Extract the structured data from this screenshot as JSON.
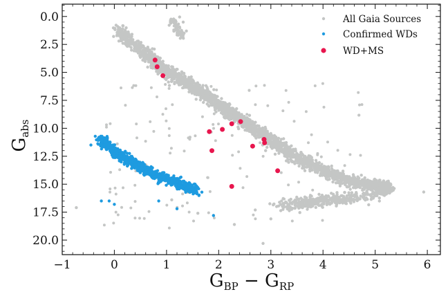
{
  "chart_data": {
    "type": "scatter",
    "title": "",
    "xlabel": {
      "main": "G",
      "sub1": "BP",
      "minus": " − ",
      "main2": "G",
      "sub2": "RP"
    },
    "ylabel": {
      "main": "G",
      "sub": "abs"
    },
    "xlim": [
      -1.0,
      6.25
    ],
    "ylim": [
      21.3,
      -1.1
    ],
    "y_inverted": true,
    "xticks": [
      -1,
      0,
      1,
      2,
      3,
      4,
      5,
      6
    ],
    "xtick_labels": [
      "−1",
      "0",
      "1",
      "2",
      "3",
      "4",
      "5",
      "6"
    ],
    "yticks": [
      0.0,
      2.5,
      5.0,
      7.5,
      10.0,
      12.5,
      15.0,
      17.5,
      20.0
    ],
    "ytick_labels": [
      "0.0",
      "2.5",
      "5.0",
      "7.5",
      "10.0",
      "12.5",
      "15.0",
      "17.5",
      "20.0"
    ],
    "grid": false,
    "legend_position": "top-right",
    "series": [
      {
        "name": "All Gaia Sources",
        "color": "#c4c6c5",
        "marker_size": "small",
        "distribution": {
          "main_sequence_track": [
            [
              0.05,
              1.2
            ],
            [
              0.6,
              3.3
            ],
            [
              1.0,
              4.9
            ],
            [
              1.5,
              6.3
            ],
            [
              2.0,
              7.9
            ],
            [
              2.5,
              9.5
            ],
            [
              3.0,
              11.1
            ],
            [
              3.5,
              12.6
            ],
            [
              4.0,
              13.8
            ],
            [
              4.5,
              14.7
            ],
            [
              5.0,
              15.2
            ],
            [
              5.25,
              15.5
            ]
          ],
          "giant_branch": [
            [
              1.1,
              0.2
            ],
            [
              1.2,
              1.0
            ],
            [
              1.3,
              1.8
            ]
          ],
          "white_dwarf_cloud": [
            [
              3.3,
              17.0
            ],
            [
              3.8,
              16.6
            ],
            [
              4.3,
              16.3
            ],
            [
              4.9,
              16.0
            ]
          ]
        },
        "points": [
          [
            -0.73,
            17.1
          ],
          [
            5.93,
            15.7
          ],
          [
            2.85,
            20.3
          ],
          [
            1.9,
            17.8
          ],
          [
            1.6,
            17.6
          ],
          [
            1.1,
            16.4
          ],
          [
            2.7,
            17.3
          ],
          [
            3.0,
            18.1
          ],
          [
            2.3,
            18.6
          ],
          [
            2.9,
            12.0
          ],
          [
            1.45,
            10.8
          ],
          [
            2.1,
            8.6
          ],
          [
            1.25,
            0.05
          ],
          [
            1.32,
            0.5
          ],
          [
            1.38,
            1.3
          ]
        ]
      },
      {
        "name": "Confirmed WDs",
        "color": "#1e9be0",
        "marker_size": "small",
        "distribution": {
          "track": [
            [
              -0.3,
              10.8
            ],
            [
              0.0,
              12.1
            ],
            [
              0.4,
              13.2
            ],
            [
              0.8,
              14.2
            ],
            [
              1.2,
              14.9
            ],
            [
              1.6,
              15.6
            ]
          ]
        },
        "points": [
          [
            -0.25,
            16.5
          ],
          [
            -0.1,
            16.5
          ],
          [
            0.0,
            16.8
          ],
          [
            0.85,
            16.5
          ],
          [
            1.2,
            17.2
          ],
          [
            1.9,
            17.8
          ],
          [
            -0.45,
            11.5
          ]
        ]
      },
      {
        "name": "WD+MS",
        "color": "#e8164e",
        "marker_size": "large",
        "points": [
          [
            0.78,
            3.9
          ],
          [
            0.82,
            4.5
          ],
          [
            0.93,
            5.3
          ],
          [
            1.82,
            10.3
          ],
          [
            1.87,
            12.0
          ],
          [
            2.07,
            10.1
          ],
          [
            2.25,
            9.6
          ],
          [
            2.42,
            9.4
          ],
          [
            2.65,
            11.6
          ],
          [
            2.87,
            11.0
          ],
          [
            2.88,
            11.3
          ],
          [
            3.13,
            13.8
          ],
          [
            2.25,
            15.2
          ]
        ]
      }
    ]
  }
}
